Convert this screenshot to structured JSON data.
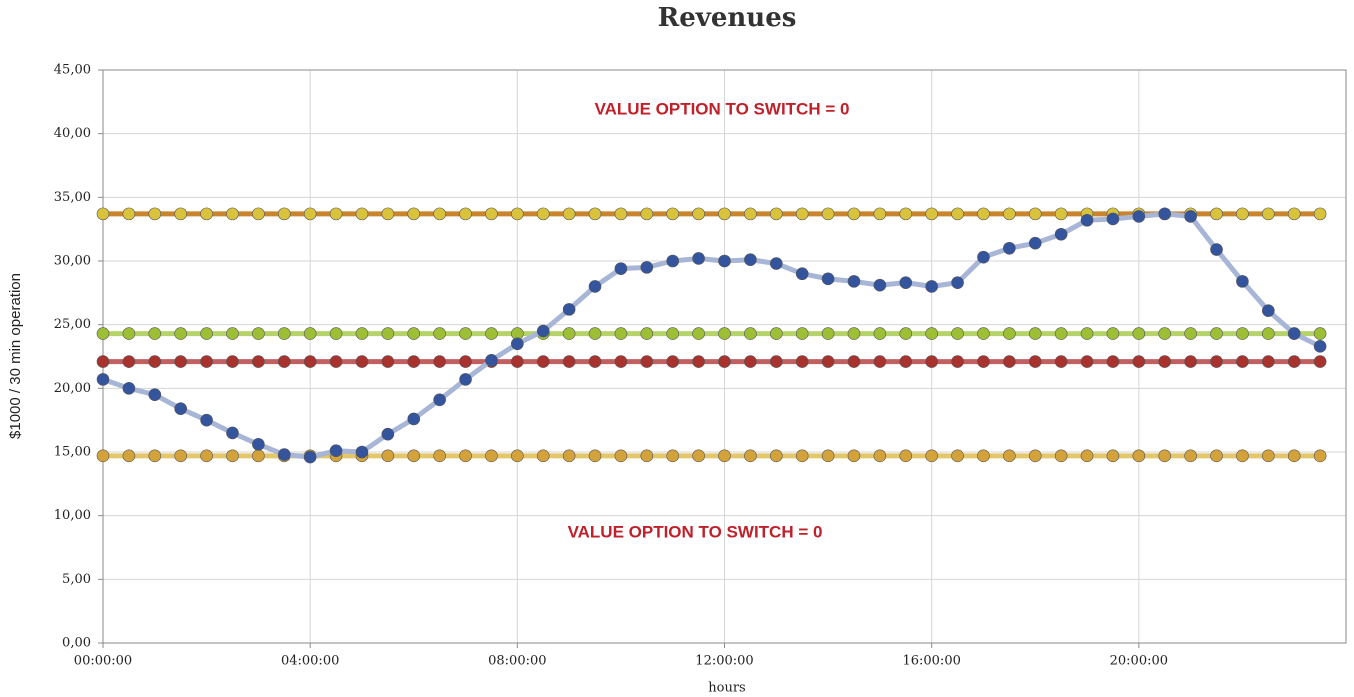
{
  "chart_data": {
    "type": "line",
    "title": "Revenues",
    "xlabel": "hours",
    "ylabel": "$1000 / 30 min operation",
    "annotations": [
      "VALUE OPTION TO SWITCH = 0",
      "VALUE OPTION TO SWITCH = 0"
    ],
    "x": [
      0,
      0.5,
      1,
      1.5,
      2,
      2.5,
      3,
      3.5,
      4,
      4.5,
      5,
      5.5,
      6,
      6.5,
      7,
      7.5,
      8,
      8.5,
      9,
      9.5,
      10,
      10.5,
      11,
      11.5,
      12,
      12.5,
      13,
      13.5,
      14,
      14.5,
      15,
      15.5,
      16,
      16.5,
      17,
      17.5,
      18,
      18.5,
      19,
      19.5,
      20,
      20.5,
      21,
      21.5,
      22,
      22.5,
      23,
      23.5
    ],
    "xlim": [
      0,
      24
    ],
    "xticks": [
      {
        "value": 0,
        "label": "00:00:00"
      },
      {
        "value": 4,
        "label": "04:00:00"
      },
      {
        "value": 8,
        "label": "08:00:00"
      },
      {
        "value": 12,
        "label": "12:00:00"
      },
      {
        "value": 16,
        "label": "16:00:00"
      },
      {
        "value": 20,
        "label": "20:00:00"
      }
    ],
    "ylim": [
      0,
      45
    ],
    "yticks": [
      {
        "value": 0,
        "label": "0,00"
      },
      {
        "value": 5,
        "label": "5,00"
      },
      {
        "value": 10,
        "label": "10,00"
      },
      {
        "value": 15,
        "label": "15,00"
      },
      {
        "value": 20,
        "label": "20,00"
      },
      {
        "value": 25,
        "label": "25,00"
      },
      {
        "value": 30,
        "label": "30,00"
      },
      {
        "value": 35,
        "label": "35,00"
      },
      {
        "value": 40,
        "label": "40,00"
      },
      {
        "value": 45,
        "label": "45,00"
      }
    ],
    "grid": true,
    "series": [
      {
        "color": "#d9c23c",
        "line_color": "#c9852e",
        "values": [
          33.7,
          33.7,
          33.7,
          33.7,
          33.7,
          33.7,
          33.7,
          33.7,
          33.7,
          33.7,
          33.7,
          33.7,
          33.7,
          33.7,
          33.7,
          33.7,
          33.7,
          33.7,
          33.7,
          33.7,
          33.7,
          33.7,
          33.7,
          33.7,
          33.7,
          33.7,
          33.7,
          33.7,
          33.7,
          33.7,
          33.7,
          33.7,
          33.7,
          33.7,
          33.7,
          33.7,
          33.7,
          33.7,
          33.7,
          33.7,
          33.7,
          33.7,
          33.7,
          33.7,
          33.7,
          33.7,
          33.7,
          33.7
        ]
      },
      {
        "color": "#9cbf35",
        "line_color": "#b5d36a",
        "values": [
          24.3,
          24.3,
          24.3,
          24.3,
          24.3,
          24.3,
          24.3,
          24.3,
          24.3,
          24.3,
          24.3,
          24.3,
          24.3,
          24.3,
          24.3,
          24.3,
          24.3,
          24.3,
          24.3,
          24.3,
          24.3,
          24.3,
          24.3,
          24.3,
          24.3,
          24.3,
          24.3,
          24.3,
          24.3,
          24.3,
          24.3,
          24.3,
          24.3,
          24.3,
          24.3,
          24.3,
          24.3,
          24.3,
          24.3,
          24.3,
          24.3,
          24.3,
          24.3,
          24.3,
          24.3,
          24.3,
          24.3,
          24.3
        ]
      },
      {
        "color": "#a8322e",
        "line_color": "#c06060",
        "values": [
          22.1,
          22.1,
          22.1,
          22.1,
          22.1,
          22.1,
          22.1,
          22.1,
          22.1,
          22.1,
          22.1,
          22.1,
          22.1,
          22.1,
          22.1,
          22.1,
          22.1,
          22.1,
          22.1,
          22.1,
          22.1,
          22.1,
          22.1,
          22.1,
          22.1,
          22.1,
          22.1,
          22.1,
          22.1,
          22.1,
          22.1,
          22.1,
          22.1,
          22.1,
          22.1,
          22.1,
          22.1,
          22.1,
          22.1,
          22.1,
          22.1,
          22.1,
          22.1,
          22.1,
          22.1,
          22.1,
          22.1,
          22.1
        ]
      },
      {
        "color": "#d4a23a",
        "line_color": "#e3c76a",
        "values": [
          14.7,
          14.7,
          14.7,
          14.7,
          14.7,
          14.7,
          14.7,
          14.7,
          14.7,
          14.7,
          14.7,
          14.7,
          14.7,
          14.7,
          14.7,
          14.7,
          14.7,
          14.7,
          14.7,
          14.7,
          14.7,
          14.7,
          14.7,
          14.7,
          14.7,
          14.7,
          14.7,
          14.7,
          14.7,
          14.7,
          14.7,
          14.7,
          14.7,
          14.7,
          14.7,
          14.7,
          14.7,
          14.7,
          14.7,
          14.7,
          14.7,
          14.7,
          14.7,
          14.7,
          14.7,
          14.7,
          14.7,
          14.7
        ]
      },
      {
        "color": "#34559e",
        "line_color": "#a7b6d6",
        "values": [
          20.7,
          20.0,
          19.5,
          18.4,
          17.5,
          16.5,
          15.6,
          14.8,
          14.6,
          15.1,
          15.0,
          16.4,
          17.6,
          19.1,
          20.7,
          22.2,
          23.5,
          24.5,
          26.2,
          28.0,
          29.4,
          29.5,
          30.0,
          30.2,
          30.0,
          30.1,
          29.8,
          29.0,
          28.6,
          28.4,
          28.1,
          28.3,
          28.0,
          28.3,
          30.3,
          31.0,
          31.4,
          32.1,
          33.2,
          33.3,
          33.5,
          33.7,
          33.5,
          30.9,
          28.4,
          26.1,
          24.3,
          23.3
        ]
      }
    ]
  }
}
